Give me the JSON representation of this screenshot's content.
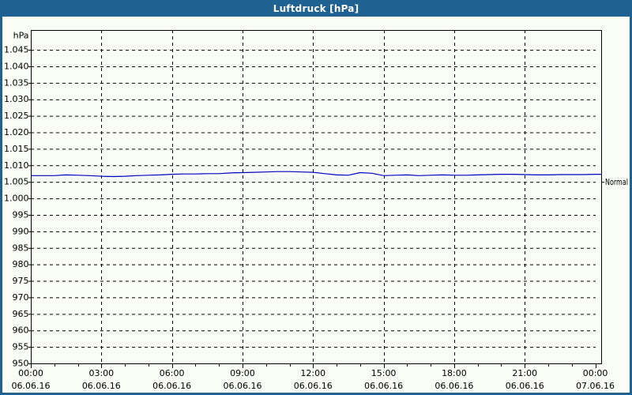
{
  "window": {
    "title": "Luftdruck [hPa]"
  },
  "colors": {
    "frame": "#1f6190",
    "titlebar_bg": "#1f6190",
    "titlebar_text": "#ffffff",
    "background": "#fafdf5",
    "grid": "#000000",
    "axis": "#000000",
    "text": "#000000",
    "line": "#0000c0"
  },
  "chart_data": {
    "type": "line",
    "title": "Luftdruck [hPa]",
    "y_unit_label": "hPa",
    "ylim": [
      950,
      1051
    ],
    "yticks": [
      1045,
      1040,
      1035,
      1030,
      1025,
      1020,
      1015,
      1010,
      1005,
      1000,
      995,
      990,
      985,
      980,
      975,
      970,
      965,
      960,
      955,
      950
    ],
    "ytick_labels": [
      "1.045",
      "1.040",
      "1.035",
      "1.030",
      "1.025",
      "1.020",
      "1.015",
      "1.010",
      "1.005",
      "1.000",
      "995",
      "990",
      "985",
      "980",
      "975",
      "970",
      "965",
      "960",
      "955",
      "950"
    ],
    "xlim_hours": [
      0,
      24.25
    ],
    "xticks_hours": [
      0,
      3,
      6,
      9,
      12,
      15,
      18,
      21,
      24
    ],
    "xtick_time_labels": [
      "00:00",
      "03:00",
      "06:00",
      "09:00",
      "12:00",
      "15:00",
      "18:00",
      "21:00",
      "00:00"
    ],
    "xtick_date_labels": [
      "06.06.16",
      "06.06.16",
      "06.06.16",
      "06.06.16",
      "06.06.16",
      "06.06.16",
      "06.06.16",
      "06.06.16",
      "07.06.16"
    ],
    "minor_xtick_interval_hours": 1,
    "grid": true,
    "legend_position": "none",
    "annotations": [
      {
        "label": "Normal",
        "value": 1005,
        "side": "right"
      }
    ],
    "series": [
      {
        "name": "Luftdruck",
        "color": "#0000c0",
        "x_hours": [
          0,
          0.5,
          1,
          1.5,
          2,
          2.5,
          3,
          3.5,
          4,
          4.5,
          5,
          5.5,
          6,
          6.5,
          7,
          7.5,
          8,
          8.5,
          9,
          9.5,
          10,
          10.5,
          11,
          11.5,
          12,
          12.5,
          13,
          13.5,
          14,
          14.5,
          15,
          15.5,
          16,
          16.5,
          17,
          17.5,
          18,
          18.5,
          19,
          19.5,
          20,
          20.5,
          21,
          21.5,
          22,
          22.5,
          23,
          23.5,
          24
        ],
        "values": [
          1006.9,
          1006.9,
          1006.9,
          1007.1,
          1007.0,
          1006.9,
          1006.7,
          1006.6,
          1006.7,
          1006.9,
          1007.0,
          1007.1,
          1007.3,
          1007.4,
          1007.4,
          1007.5,
          1007.5,
          1007.7,
          1007.8,
          1007.9,
          1008.0,
          1008.1,
          1008.1,
          1008.0,
          1007.9,
          1007.5,
          1007.1,
          1007.0,
          1007.8,
          1007.6,
          1006.9,
          1007.0,
          1007.1,
          1006.9,
          1007.0,
          1007.1,
          1007.0,
          1007.0,
          1007.1,
          1007.2,
          1007.3,
          1007.3,
          1007.2,
          1007.1,
          1007.1,
          1007.2,
          1007.2,
          1007.2,
          1007.3
        ]
      }
    ]
  }
}
